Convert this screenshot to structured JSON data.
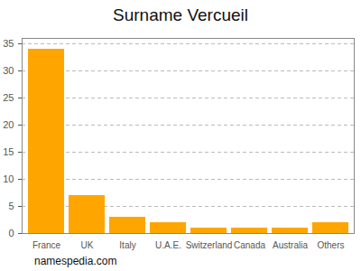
{
  "chart_data": {
    "type": "bar",
    "title": "Surname Vercueil",
    "caption": "namespedia.com",
    "categories": [
      "France",
      "UK",
      "Italy",
      "U.A.E.",
      "Switzerland",
      "Canada",
      "Australia",
      "Others"
    ],
    "values": [
      34,
      7,
      3,
      2,
      1,
      1,
      1,
      2
    ],
    "color": "#ffa500",
    "ylim": [
      0,
      36
    ],
    "yticks": [
      0,
      5,
      10,
      15,
      20,
      25,
      30,
      35
    ],
    "grid": true
  }
}
